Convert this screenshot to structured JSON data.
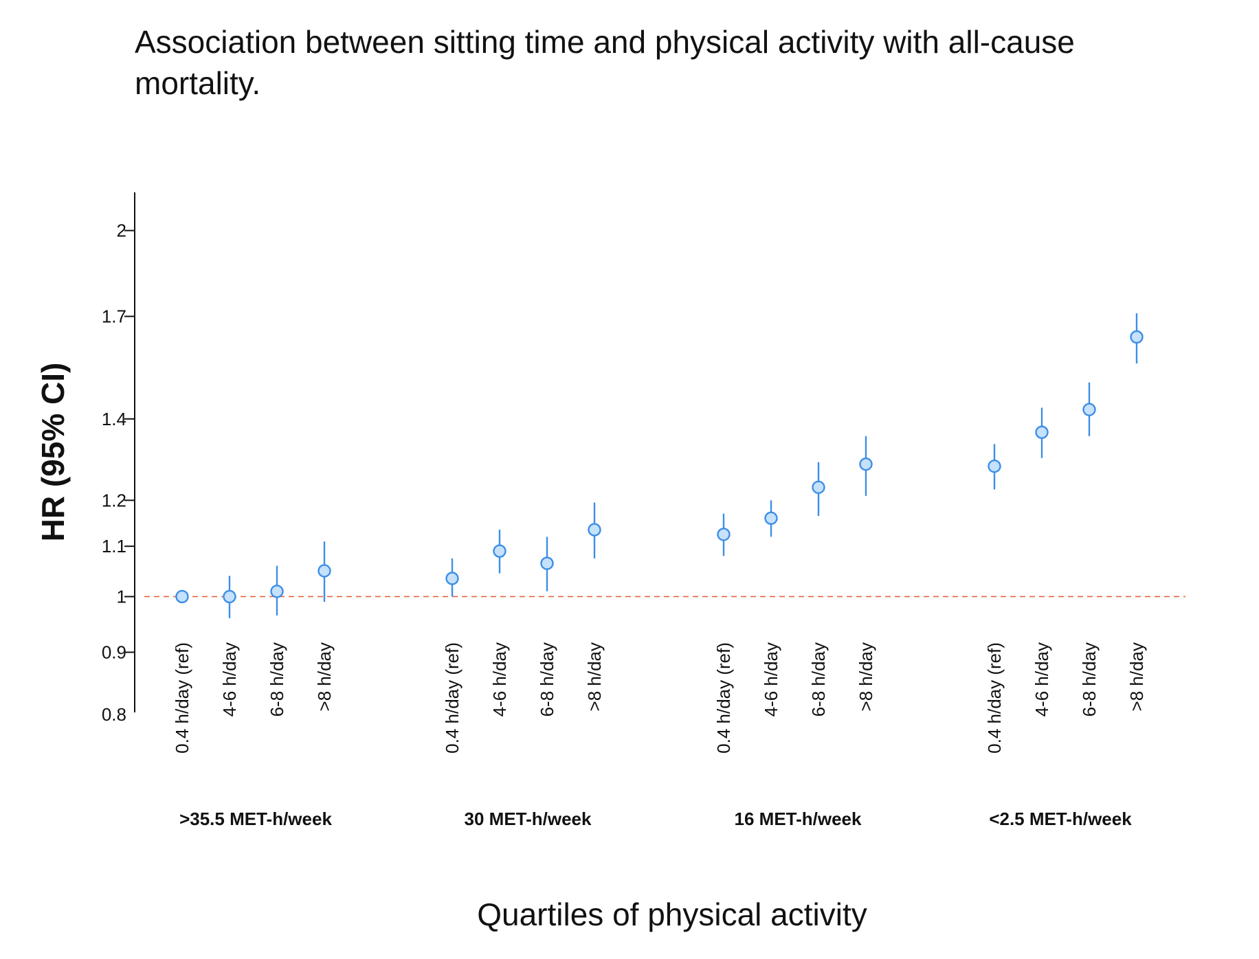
{
  "chart_data": {
    "type": "scatter",
    "title_lines": [
      "Association between sitting time and physical activity with all-cause",
      "mortality."
    ],
    "ylabel": "HR (95% CI)",
    "xlabel": "Quartiles of physical activity",
    "y_scale": "log",
    "ylim": [
      0.8,
      2.15
    ],
    "y_ticks": [
      0.8,
      0.9,
      1,
      1.1,
      1.2,
      1.4,
      1.7,
      2
    ],
    "y_tick_labels": [
      "0.8",
      "0.9",
      "1",
      "1.1",
      "1.2",
      "1.4",
      "1.7",
      "2"
    ],
    "reference_line": 1,
    "colors": {
      "marker_fill": "#c6e1fb",
      "marker_stroke": "#3d8ee8",
      "error_bar": "#3d8ee8",
      "reference": "#e8643c",
      "axis": "#111111"
    },
    "groups": [
      {
        "name": ">35.5 MET-h/week",
        "points": [
          {
            "label": "0.4 h/day (ref)",
            "hr": 1.0,
            "lower": 1.0,
            "upper": 1.0
          },
          {
            "label": "4-6 h/day",
            "hr": 1.0,
            "lower": 0.96,
            "upper": 1.04
          },
          {
            "label": "6-8 h/day",
            "hr": 1.01,
            "lower": 0.965,
            "upper": 1.06
          },
          {
            "label": ">8 h/day",
            "hr": 1.05,
            "lower": 0.99,
            "upper": 1.11
          }
        ]
      },
      {
        "name": "30 MET-h/week",
        "points": [
          {
            "label": "0.4 h/day (ref)",
            "hr": 1.035,
            "lower": 1.0,
            "upper": 1.075
          },
          {
            "label": "4-6 h/day",
            "hr": 1.09,
            "lower": 1.045,
            "upper": 1.135
          },
          {
            "label": "6-8 h/day",
            "hr": 1.065,
            "lower": 1.01,
            "upper": 1.12
          },
          {
            "label": ">8 h/day",
            "hr": 1.135,
            "lower": 1.075,
            "upper": 1.195
          }
        ]
      },
      {
        "name": "16 MET-h/week",
        "points": [
          {
            "label": "0.4 h/day (ref)",
            "hr": 1.125,
            "lower": 1.08,
            "upper": 1.17
          },
          {
            "label": "4-6 h/day",
            "hr": 1.16,
            "lower": 1.12,
            "upper": 1.2
          },
          {
            "label": "6-8 h/day",
            "hr": 1.23,
            "lower": 1.165,
            "upper": 1.29
          },
          {
            "label": ">8 h/day",
            "hr": 1.285,
            "lower": 1.21,
            "upper": 1.355
          }
        ]
      },
      {
        "name": "<2.5 MET-h/week",
        "points": [
          {
            "label": "0.4 h/day (ref)",
            "hr": 1.28,
            "lower": 1.225,
            "upper": 1.335
          },
          {
            "label": "4-6 h/day",
            "hr": 1.365,
            "lower": 1.3,
            "upper": 1.43
          },
          {
            "label": "6-8 h/day",
            "hr": 1.425,
            "lower": 1.355,
            "upper": 1.5
          },
          {
            "label": ">8 h/day",
            "hr": 1.635,
            "lower": 1.555,
            "upper": 1.71
          }
        ]
      }
    ]
  }
}
